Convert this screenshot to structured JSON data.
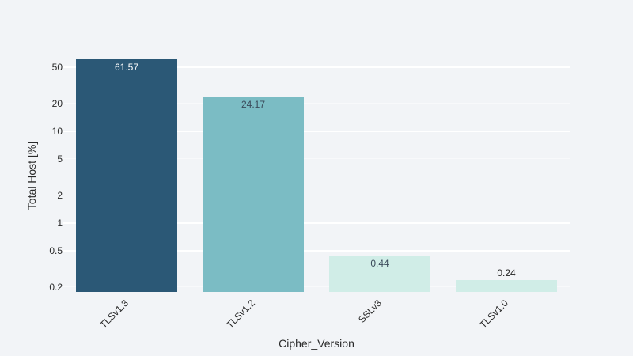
{
  "chart_data": {
    "type": "bar",
    "title": "",
    "xlabel": "Cipher_Version",
    "ylabel": "Total Host [%]",
    "yscale": "log",
    "ylim": [
      0.18,
      70
    ],
    "yticks": [
      50,
      20,
      10,
      5,
      2,
      1,
      0.5,
      0.2
    ],
    "ytick_labels": [
      "50",
      "20",
      "10",
      "5",
      "2",
      "1",
      "0.5",
      "0.2"
    ],
    "grid": true,
    "legend": null,
    "categories": [
      "TLSv1.3",
      "TLSv1.2",
      "SSLv3",
      "TLSv1.0"
    ],
    "values": [
      61.57,
      24.17,
      0.44,
      0.24
    ],
    "value_labels": [
      "61.57",
      "24.17",
      "0.44",
      "0.24"
    ],
    "colors": [
      "#2b5876",
      "#7bbcc4",
      "#d0ede7",
      "#d0ede7"
    ],
    "label_colors": [
      "#ffffff",
      "#3a4a5a",
      "#3a4a5a",
      "#1e1e1e"
    ]
  }
}
